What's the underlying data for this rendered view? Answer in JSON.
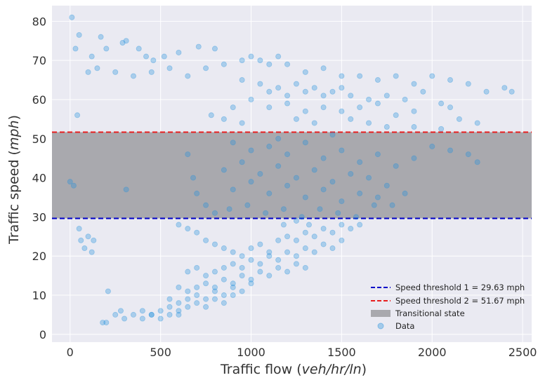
{
  "chart_data": {
    "type": "scatter",
    "title": "",
    "xlabel": "Traffic flow (veh/hr/ln)",
    "xlabel_prefix": "Traffic flow (",
    "xlabel_units": "veh/hr/ln",
    "xlabel_suffix": ")",
    "ylabel": "Traffic speed (mph)",
    "ylabel_prefix": "Traffic speed (",
    "ylabel_units": "mph",
    "ylabel_suffix": ")",
    "xlim": [
      -100,
      2550
    ],
    "ylim": [
      -2,
      84
    ],
    "x_ticks": [
      0,
      500,
      1000,
      1500,
      2000,
      2500
    ],
    "y_ticks": [
      0,
      10,
      20,
      30,
      40,
      50,
      60,
      70,
      80
    ],
    "grid": true,
    "legend_position": "bottom-right",
    "colors": {
      "data": "#1f8fdc",
      "threshold_1": "#0000c8",
      "threshold_2": "#e81e1e",
      "band": "#a9a9ae",
      "plot_background": "#eaeaf2"
    },
    "thresholds": [
      {
        "name": "Speed threshold 1 = 29.63 mph",
        "y": 29.63
      },
      {
        "name": "Speed threshold 2 = 51.67 mph",
        "y": 51.67
      }
    ],
    "band": {
      "name": "Transitional state",
      "y_from": 29.63,
      "y_to": 51.67
    },
    "series": [
      {
        "name": "Data",
        "points": [
          [
            10,
            81
          ],
          [
            50,
            76.5
          ],
          [
            30,
            73
          ],
          [
            170,
            76
          ],
          [
            120,
            71
          ],
          [
            200,
            73
          ],
          [
            290,
            74.5
          ],
          [
            310,
            75
          ],
          [
            380,
            73
          ],
          [
            420,
            71
          ],
          [
            460,
            70
          ],
          [
            520,
            71
          ],
          [
            600,
            72
          ],
          [
            710,
            73.5
          ],
          [
            800,
            73
          ],
          [
            150,
            68
          ],
          [
            100,
            67
          ],
          [
            250,
            67
          ],
          [
            350,
            66
          ],
          [
            450,
            67
          ],
          [
            550,
            68
          ],
          [
            650,
            66
          ],
          [
            750,
            68
          ],
          [
            850,
            69
          ],
          [
            950,
            70
          ],
          [
            1000,
            71
          ],
          [
            1050,
            70
          ],
          [
            1100,
            69
          ],
          [
            1150,
            71
          ],
          [
            1200,
            69
          ],
          [
            1300,
            67
          ],
          [
            1400,
            68
          ],
          [
            1500,
            66
          ],
          [
            1600,
            66
          ],
          [
            1700,
            65
          ],
          [
            1800,
            66
          ],
          [
            1900,
            64
          ],
          [
            2000,
            66
          ],
          [
            2100,
            65
          ],
          [
            2200,
            64
          ],
          [
            2300,
            62
          ],
          [
            2400,
            63
          ],
          [
            2440,
            62
          ],
          [
            950,
            65
          ],
          [
            1050,
            64
          ],
          [
            1100,
            62
          ],
          [
            1150,
            63
          ],
          [
            1200,
            61
          ],
          [
            1250,
            64
          ],
          [
            1300,
            62
          ],
          [
            1350,
            63
          ],
          [
            1400,
            61
          ],
          [
            1450,
            62
          ],
          [
            1500,
            63
          ],
          [
            1550,
            61
          ],
          [
            1650,
            60
          ],
          [
            1750,
            61
          ],
          [
            1850,
            60
          ],
          [
            1950,
            62
          ],
          [
            2050,
            59
          ],
          [
            900,
            58
          ],
          [
            1000,
            60
          ],
          [
            1100,
            58
          ],
          [
            1200,
            59
          ],
          [
            1300,
            57
          ],
          [
            1400,
            58
          ],
          [
            1500,
            57
          ],
          [
            1600,
            58
          ],
          [
            1700,
            59
          ],
          [
            1800,
            56
          ],
          [
            1900,
            57
          ],
          [
            2100,
            58
          ],
          [
            2150,
            55
          ],
          [
            2250,
            54
          ],
          [
            780,
            56
          ],
          [
            850,
            55
          ],
          [
            950,
            54
          ],
          [
            1250,
            55
          ],
          [
            1350,
            54
          ],
          [
            1550,
            55
          ],
          [
            1650,
            54
          ],
          [
            1750,
            53
          ],
          [
            1900,
            53
          ],
          [
            2050,
            52.5
          ],
          [
            40,
            56
          ],
          [
            900,
            49
          ],
          [
            1000,
            47
          ],
          [
            1100,
            48
          ],
          [
            1200,
            46
          ],
          [
            1300,
            49
          ],
          [
            1400,
            45
          ],
          [
            1500,
            47
          ],
          [
            1600,
            44
          ],
          [
            1700,
            46
          ],
          [
            1800,
            43
          ],
          [
            1900,
            45
          ],
          [
            2000,
            48
          ],
          [
            2100,
            47
          ],
          [
            2200,
            46
          ],
          [
            2250,
            44
          ],
          [
            850,
            42
          ],
          [
            950,
            44
          ],
          [
            1050,
            41
          ],
          [
            1150,
            43
          ],
          [
            1250,
            40
          ],
          [
            1350,
            42
          ],
          [
            1450,
            39
          ],
          [
            1550,
            41
          ],
          [
            1650,
            40
          ],
          [
            1750,
            38
          ],
          [
            1850,
            36
          ],
          [
            900,
            37
          ],
          [
            1000,
            39
          ],
          [
            1100,
            36
          ],
          [
            1200,
            38
          ],
          [
            1300,
            35
          ],
          [
            1400,
            37
          ],
          [
            1500,
            34
          ],
          [
            1600,
            36
          ],
          [
            1700,
            35
          ],
          [
            650,
            46
          ],
          [
            680,
            40
          ],
          [
            700,
            36
          ],
          [
            750,
            33
          ],
          [
            800,
            31
          ],
          [
            880,
            32
          ],
          [
            980,
            33
          ],
          [
            1080,
            31
          ],
          [
            1180,
            32
          ],
          [
            1280,
            30
          ],
          [
            1380,
            32
          ],
          [
            1480,
            31
          ],
          [
            1580,
            30
          ],
          [
            1680,
            33
          ],
          [
            1780,
            33
          ],
          [
            0,
            39
          ],
          [
            20,
            38
          ],
          [
            310,
            37
          ],
          [
            1150,
            50
          ],
          [
            1450,
            51
          ],
          [
            50,
            27
          ],
          [
            60,
            24
          ],
          [
            80,
            22
          ],
          [
            100,
            25
          ],
          [
            120,
            21
          ],
          [
            130,
            24
          ],
          [
            600,
            28
          ],
          [
            650,
            27
          ],
          [
            700,
            26
          ],
          [
            750,
            24
          ],
          [
            800,
            23
          ],
          [
            850,
            22
          ],
          [
            900,
            21
          ],
          [
            950,
            20
          ],
          [
            1000,
            22
          ],
          [
            1050,
            23
          ],
          [
            1100,
            21
          ],
          [
            1150,
            24
          ],
          [
            1200,
            25
          ],
          [
            1250,
            24
          ],
          [
            1300,
            26
          ],
          [
            1350,
            25
          ],
          [
            1400,
            27
          ],
          [
            1450,
            26
          ],
          [
            1500,
            28
          ],
          [
            1550,
            27
          ],
          [
            1600,
            28
          ],
          [
            1180,
            28
          ],
          [
            1250,
            29
          ],
          [
            1320,
            28
          ],
          [
            650,
            16
          ],
          [
            700,
            17
          ],
          [
            750,
            15
          ],
          [
            800,
            16
          ],
          [
            850,
            17
          ],
          [
            900,
            18
          ],
          [
            950,
            17
          ],
          [
            1000,
            19
          ],
          [
            1050,
            18
          ],
          [
            1100,
            20
          ],
          [
            1150,
            19
          ],
          [
            1200,
            21
          ],
          [
            1250,
            20
          ],
          [
            1300,
            22
          ],
          [
            1350,
            21
          ],
          [
            1400,
            23
          ],
          [
            1450,
            22
          ],
          [
            1500,
            24
          ],
          [
            600,
            12
          ],
          [
            650,
            11
          ],
          [
            700,
            12
          ],
          [
            750,
            13
          ],
          [
            800,
            12
          ],
          [
            850,
            14
          ],
          [
            900,
            13
          ],
          [
            950,
            15
          ],
          [
            1000,
            14
          ],
          [
            1050,
            16
          ],
          [
            1100,
            15
          ],
          [
            1150,
            17
          ],
          [
            1200,
            16
          ],
          [
            1250,
            18
          ],
          [
            1300,
            17
          ],
          [
            550,
            9
          ],
          [
            600,
            8
          ],
          [
            650,
            9
          ],
          [
            700,
            10
          ],
          [
            750,
            9
          ],
          [
            800,
            11
          ],
          [
            850,
            10
          ],
          [
            900,
            12
          ],
          [
            950,
            11
          ],
          [
            1000,
            13
          ],
          [
            400,
            6
          ],
          [
            450,
            5
          ],
          [
            500,
            6
          ],
          [
            550,
            7
          ],
          [
            600,
            6
          ],
          [
            650,
            7
          ],
          [
            700,
            8
          ],
          [
            750,
            7
          ],
          [
            800,
            9
          ],
          [
            850,
            8
          ],
          [
            900,
            10
          ],
          [
            300,
            4
          ],
          [
            350,
            5
          ],
          [
            400,
            4
          ],
          [
            450,
            5
          ],
          [
            500,
            4
          ],
          [
            550,
            5
          ],
          [
            600,
            5
          ],
          [
            180,
            3
          ],
          [
            200,
            3
          ],
          [
            210,
            11
          ],
          [
            280,
            6
          ],
          [
            250,
            5
          ]
        ]
      }
    ]
  },
  "legend": {
    "items": [
      {
        "label": "Speed threshold 1 = 29.63 mph",
        "kind": "dashed-line",
        "color": "#0000c8"
      },
      {
        "label": "Speed threshold 2 = 51.67 mph",
        "kind": "dashed-line",
        "color": "#e81e1e"
      },
      {
        "label": "Transitional state",
        "kind": "patch",
        "color": "#a9a9ae"
      },
      {
        "label": "Data",
        "kind": "marker",
        "color": "#1f8fdc"
      }
    ]
  }
}
